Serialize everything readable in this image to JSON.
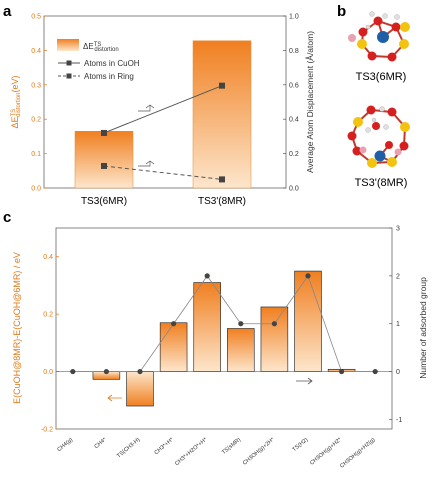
{
  "panel_a": {
    "letter": "a",
    "left_axis_label": "ΔE",
    "left_axis_sup": "TS",
    "left_axis_sub": "distortion",
    "left_axis_unit": "(eV)",
    "right_axis_label": "Average Atom Displacement (Å/atom)",
    "legend": {
      "bar_label": "ΔE",
      "bar_sup": "TS",
      "bar_sub": "distortion",
      "line1": "Atoms in CuOH",
      "line2": "Atoms in Ring"
    }
  },
  "panel_b": {
    "letter": "b",
    "labels": [
      "TS3(6MR)",
      "TS3'(8MR)"
    ]
  },
  "panel_c": {
    "letter": "c",
    "left_axis_label": "E(CuOH@8MR)-E(CuOH@6MR) / eV",
    "right_axis_label": "Number of adsorbed group"
  },
  "chart_data": [
    {
      "type": "bar",
      "categories": [
        "TS3(6MR)",
        "TS3'(8MR)"
      ],
      "values": [
        0.165,
        0.428
      ],
      "ylim": [
        0,
        0.5
      ],
      "yticks": [
        "0.0",
        "0.1",
        "0.2",
        "0.3",
        "0.4",
        "0.5"
      ],
      "y2lim": [
        0,
        1.0
      ],
      "y2ticks": [
        "0.0",
        "0.2",
        "0.4",
        "0.6",
        "0.8",
        "1.0"
      ],
      "series": [
        {
          "name": "Atoms in CuOH",
          "axis": "right",
          "style": "solid",
          "values": [
            0.32,
            0.595
          ]
        },
        {
          "name": "Atoms in Ring",
          "axis": "right",
          "style": "dashed",
          "values": [
            0.128,
            0.05
          ]
        }
      ],
      "colors": {
        "bar_top": "#f07f20",
        "bar_bottom": "#fde6cc",
        "line": "#555555",
        "axis_left": "#e07a1a"
      }
    },
    {
      "type": "bar",
      "categories": [
        "CH4(g)",
        "CH4*",
        "TS(CH3-H)",
        "CH3*+H*",
        "CH3*+H2O*+H*",
        "TS(sMR)",
        "CH3OH(g)+2H*",
        "TS(H2)",
        "CH3OH(g)+H2*",
        "CH3OH(g)+H2(g)"
      ],
      "values": [
        0,
        -0.027,
        -0.12,
        0.17,
        0.31,
        0.15,
        0.225,
        0.35,
        0.008,
        0
      ],
      "ylim": [
        -0.2,
        0.5
      ],
      "yticks": [
        "-0.2",
        "0.0",
        "0.2",
        "0.4"
      ],
      "y2lim": [
        -1.2,
        3.0
      ],
      "y2ticks": [
        "-1",
        "0",
        "1",
        "2",
        "3"
      ],
      "series": [
        {
          "name": "Number of adsorbed group",
          "axis": "right",
          "values": [
            0,
            0,
            0,
            1,
            2,
            1,
            1,
            2,
            0,
            0
          ]
        }
      ],
      "colors": {
        "bar_top": "#f07f20",
        "bar_bottom": "#fde6cc",
        "line": "#888888",
        "marker": "#444444",
        "axis_left": "#e07a1a"
      }
    }
  ]
}
